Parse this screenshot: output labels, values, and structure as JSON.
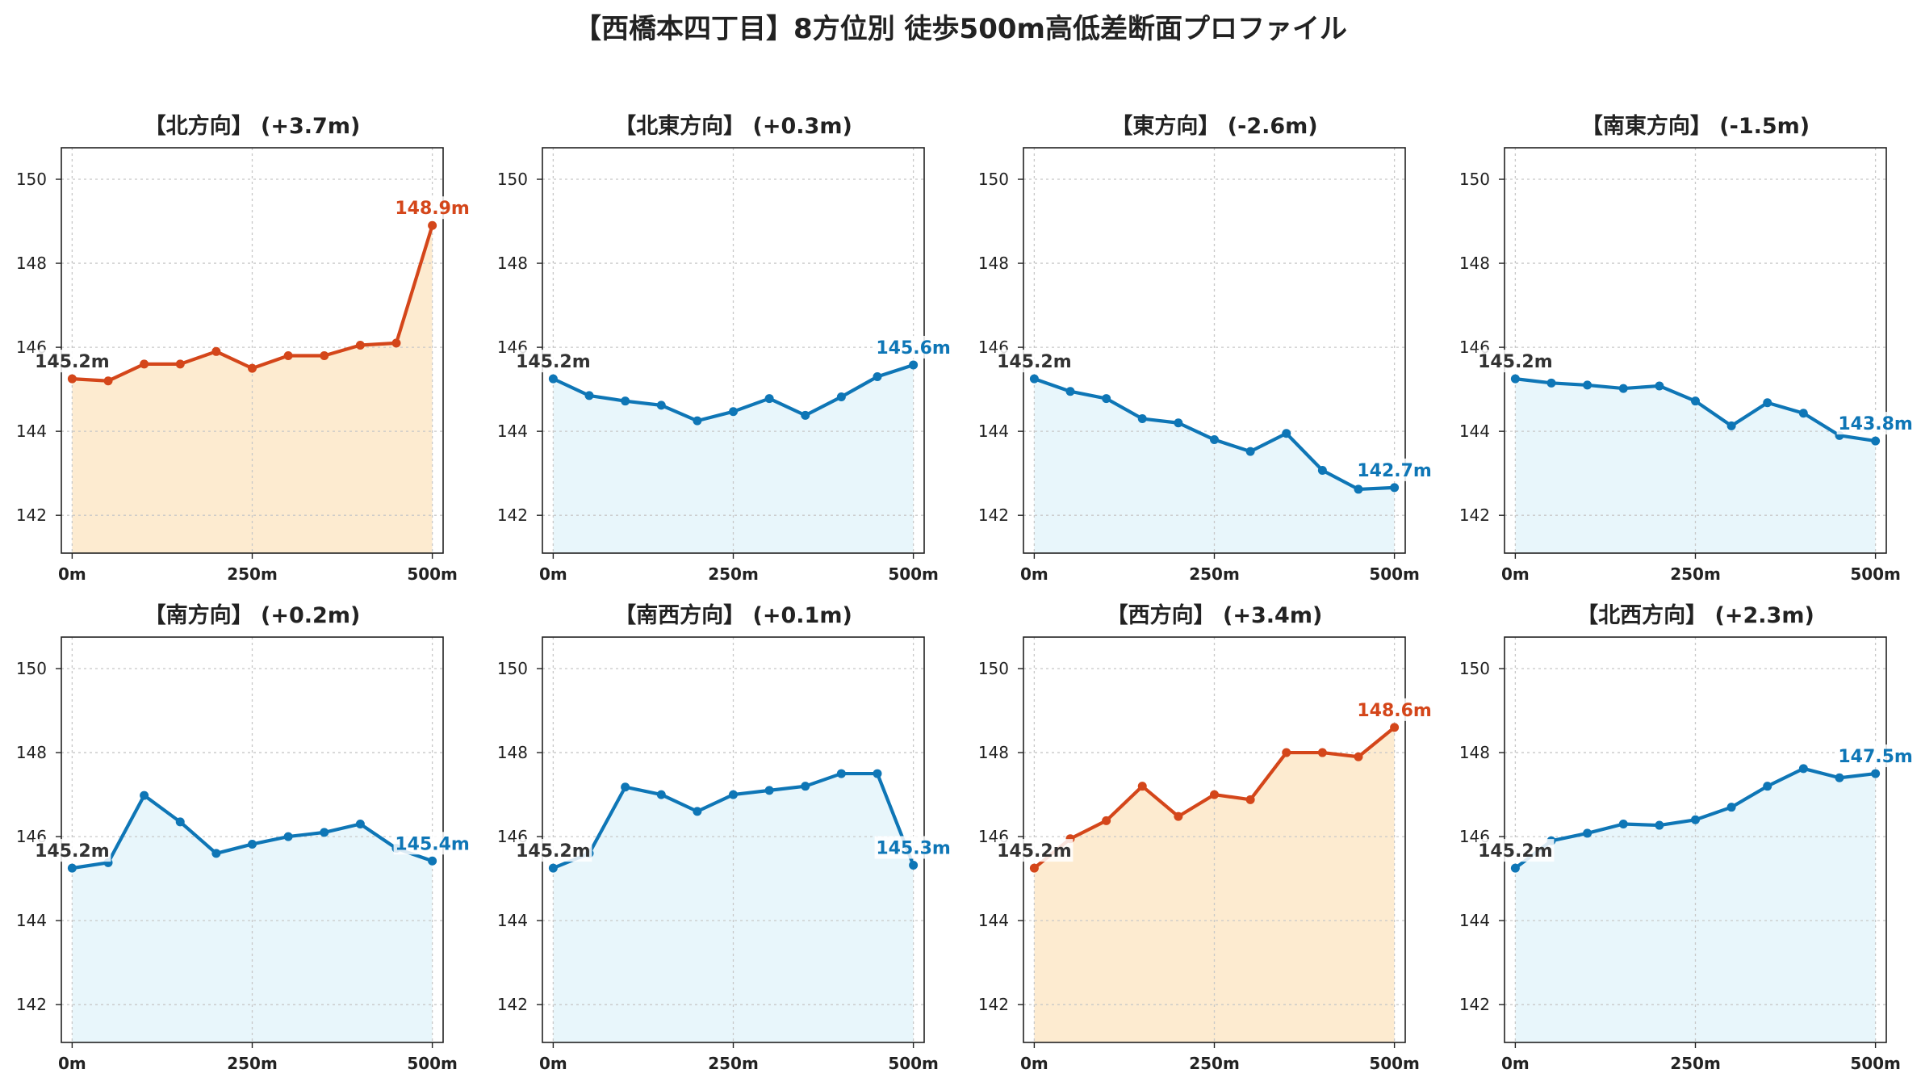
{
  "title": "【西橋本四丁目】8方位別 徒歩500m高低差断面プロファイル",
  "colors": {
    "up_line": "#d4461a",
    "up_fill": "#fdebd0",
    "down_line": "#0e76b6",
    "down_fill": "#e8f6fb",
    "start_label": "#333333"
  },
  "chart_data": [
    {
      "type": "area",
      "title": "【北方向】 (+3.7m)",
      "xlabel": "",
      "ylabel": "",
      "x": [
        0,
        50,
        100,
        150,
        200,
        250,
        300,
        350,
        400,
        450,
        500
      ],
      "y": [
        145.25,
        145.2,
        145.6,
        145.6,
        145.9,
        145.5,
        145.8,
        145.8,
        146.05,
        146.1,
        148.9
      ],
      "xticks": [
        "0m",
        "250m",
        "500m"
      ],
      "yticks": [
        142,
        144,
        146,
        148,
        150
      ],
      "xlim": [
        -15,
        515
      ],
      "ylim": [
        141.1,
        150.75
      ],
      "start_label": "145.2m",
      "end_label": "148.9m",
      "trend": "up",
      "grid": true
    },
    {
      "type": "area",
      "title": "【北東方向】 (+0.3m)",
      "xlabel": "",
      "ylabel": "",
      "x": [
        0,
        50,
        100,
        150,
        200,
        250,
        300,
        350,
        400,
        450,
        500
      ],
      "y": [
        145.25,
        144.85,
        144.72,
        144.62,
        144.25,
        144.47,
        144.78,
        144.38,
        144.82,
        145.3,
        145.58
      ],
      "xticks": [
        "0m",
        "250m",
        "500m"
      ],
      "yticks": [
        142,
        144,
        146,
        148,
        150
      ],
      "xlim": [
        -15,
        515
      ],
      "ylim": [
        141.1,
        150.75
      ],
      "start_label": "145.2m",
      "end_label": "145.6m",
      "trend": "down",
      "grid": true
    },
    {
      "type": "area",
      "title": "【東方向】 (-2.6m)",
      "xlabel": "",
      "ylabel": "",
      "x": [
        0,
        50,
        100,
        150,
        200,
        250,
        300,
        350,
        400,
        450,
        500
      ],
      "y": [
        145.25,
        144.95,
        144.78,
        144.3,
        144.2,
        143.8,
        143.52,
        143.95,
        143.07,
        142.62,
        142.66
      ],
      "xticks": [
        "0m",
        "250m",
        "500m"
      ],
      "yticks": [
        142,
        144,
        146,
        148,
        150
      ],
      "xlim": [
        -15,
        515
      ],
      "ylim": [
        141.1,
        150.75
      ],
      "start_label": "145.2m",
      "end_label": "142.7m",
      "trend": "down",
      "grid": true
    },
    {
      "type": "area",
      "title": "【南東方向】 (-1.5m)",
      "xlabel": "",
      "ylabel": "",
      "x": [
        0,
        50,
        100,
        150,
        200,
        250,
        300,
        350,
        400,
        450,
        500
      ],
      "y": [
        145.25,
        145.15,
        145.1,
        145.02,
        145.08,
        144.72,
        144.13,
        144.68,
        144.43,
        143.9,
        143.77
      ],
      "xticks": [
        "0m",
        "250m",
        "500m"
      ],
      "yticks": [
        142,
        144,
        146,
        148,
        150
      ],
      "xlim": [
        -15,
        515
      ],
      "ylim": [
        141.1,
        150.75
      ],
      "start_label": "145.2m",
      "end_label": "143.8m",
      "trend": "down",
      "grid": true
    },
    {
      "type": "area",
      "title": "【南方向】 (+0.2m)",
      "xlabel": "",
      "ylabel": "",
      "x": [
        0,
        50,
        100,
        150,
        200,
        250,
        300,
        350,
        400,
        450,
        500
      ],
      "y": [
        145.25,
        145.38,
        146.98,
        146.35,
        145.6,
        145.82,
        146.0,
        146.1,
        146.3,
        145.72,
        145.42
      ],
      "xticks": [
        "0m",
        "250m",
        "500m"
      ],
      "yticks": [
        142,
        144,
        146,
        148,
        150
      ],
      "xlim": [
        -15,
        515
      ],
      "ylim": [
        141.1,
        150.75
      ],
      "start_label": "145.2m",
      "end_label": "145.4m",
      "trend": "down",
      "grid": true
    },
    {
      "type": "area",
      "title": "【南西方向】 (+0.1m)",
      "xlabel": "",
      "ylabel": "",
      "x": [
        0,
        50,
        100,
        150,
        200,
        250,
        300,
        350,
        400,
        450,
        500
      ],
      "y": [
        145.25,
        145.6,
        147.18,
        147.0,
        146.6,
        147.0,
        147.1,
        147.2,
        147.5,
        147.5,
        145.32
      ],
      "xticks": [
        "0m",
        "250m",
        "500m"
      ],
      "yticks": [
        142,
        144,
        146,
        148,
        150
      ],
      "xlim": [
        -15,
        515
      ],
      "ylim": [
        141.1,
        150.75
      ],
      "start_label": "145.2m",
      "end_label": "145.3m",
      "trend": "down",
      "grid": true
    },
    {
      "type": "area",
      "title": "【西方向】 (+3.4m)",
      "xlabel": "",
      "ylabel": "",
      "x": [
        0,
        50,
        100,
        150,
        200,
        250,
        300,
        350,
        400,
        450,
        500
      ],
      "y": [
        145.25,
        145.95,
        146.38,
        147.2,
        146.48,
        147.0,
        146.88,
        148.0,
        148.0,
        147.9,
        148.6
      ],
      "xticks": [
        "0m",
        "250m",
        "500m"
      ],
      "yticks": [
        142,
        144,
        146,
        148,
        150
      ],
      "xlim": [
        -15,
        515
      ],
      "ylim": [
        141.1,
        150.75
      ],
      "start_label": "145.2m",
      "end_label": "148.6m",
      "trend": "up",
      "grid": true
    },
    {
      "type": "area",
      "title": "【北西方向】 (+2.3m)",
      "xlabel": "",
      "ylabel": "",
      "x": [
        0,
        50,
        100,
        150,
        200,
        250,
        300,
        350,
        400,
        450,
        500
      ],
      "y": [
        145.25,
        145.9,
        146.08,
        146.3,
        146.27,
        146.4,
        146.7,
        147.2,
        147.62,
        147.4,
        147.5
      ],
      "xticks": [
        "0m",
        "250m",
        "500m"
      ],
      "yticks": [
        142,
        144,
        146,
        148,
        150
      ],
      "xlim": [
        -15,
        515
      ],
      "ylim": [
        141.1,
        150.75
      ],
      "start_label": "145.2m",
      "end_label": "147.5m",
      "trend": "down",
      "grid": true
    }
  ]
}
